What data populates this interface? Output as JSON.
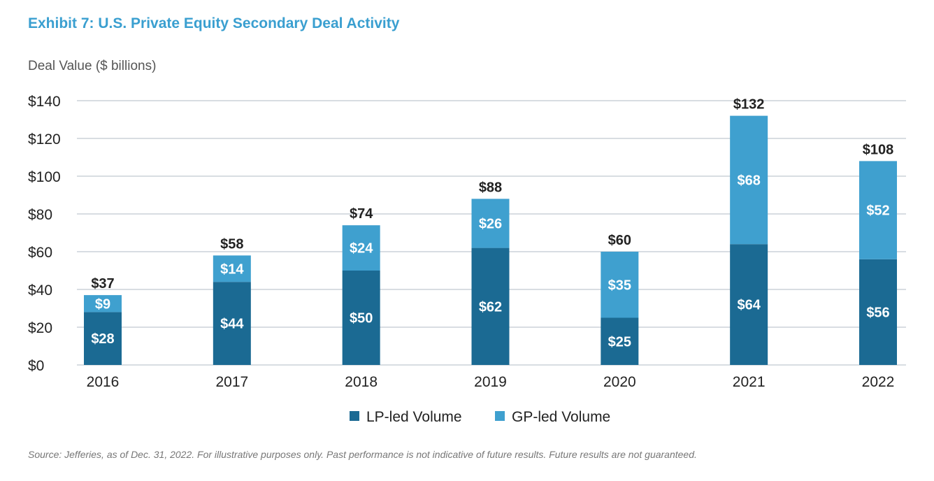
{
  "title": "Exhibit 7: U.S. Private Equity Secondary Deal Activity",
  "source": "Source: Jefferies, as of Dec. 31, 2022. For illustrative purposes only. Past performance is not indicative of future results. Future results are not guaranteed.",
  "colors": {
    "lp": "#1b6a93",
    "gp": "#3fa0cf",
    "title": "#3a9fd0",
    "grid": "#d8dde2"
  },
  "chart_data": {
    "type": "bar",
    "stacked": true,
    "ylabel": "Deal Value ($ billions)",
    "ylim": [
      0,
      140
    ],
    "yticks": [
      0,
      20,
      40,
      60,
      80,
      100,
      120,
      140
    ],
    "ytick_labels": [
      "$0",
      "$20",
      "$40",
      "$60",
      "$80",
      "$100",
      "$120",
      "$140"
    ],
    "grid": true,
    "legend_position": "bottom",
    "categories": [
      "2016",
      "2017",
      "2018",
      "2019",
      "2020",
      "2021",
      "2022"
    ],
    "series": [
      {
        "name": "LP-led Volume",
        "values": [
          28,
          44,
          50,
          62,
          25,
          64,
          56
        ],
        "labels": [
          "$28",
          "$44",
          "$50",
          "$62",
          "$25",
          "$64",
          "$56"
        ]
      },
      {
        "name": "GP-led Volume",
        "values": [
          9,
          14,
          24,
          26,
          35,
          68,
          52
        ],
        "labels": [
          "$9",
          "$14",
          "$24",
          "$26",
          "$35",
          "$68",
          "$52"
        ]
      }
    ],
    "totals": [
      37,
      58,
      74,
      88,
      60,
      132,
      108
    ],
    "total_labels": [
      "$37",
      "$58",
      "$74",
      "$88",
      "$60",
      "$132",
      "$108"
    ]
  }
}
